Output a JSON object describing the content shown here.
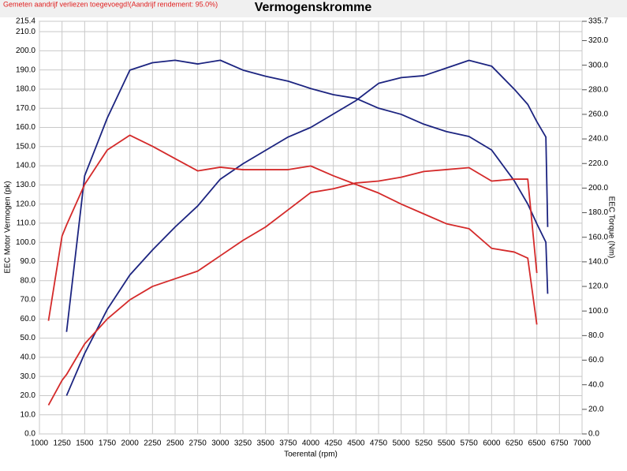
{
  "note": "Gemeten aandrijf verliezen toegevoegd!(Aandrijf rendement: 95.0%)",
  "chart_data": {
    "type": "line",
    "title": "Vermogenskromme",
    "xlabel": "Toerental (rpm)",
    "ylabel": "EEC Motor Vermogen (pk)",
    "y2label": "EEC Torque (Nm)",
    "grid": true,
    "x": [
      1100,
      1250,
      1300,
      1500,
      1750,
      2000,
      2250,
      2500,
      2750,
      3000,
      3250,
      3500,
      3750,
      4000,
      4250,
      4500,
      4750,
      5000,
      5250,
      5500,
      5750,
      6000,
      6250,
      6400,
      6500,
      6600,
      6620
    ],
    "xlim": [
      1000,
      7000
    ],
    "xticks": [
      1000,
      1250,
      1500,
      1750,
      2000,
      2250,
      2500,
      2750,
      3000,
      3250,
      3500,
      3750,
      4000,
      4250,
      4500,
      4750,
      5000,
      5250,
      5500,
      5750,
      6000,
      6250,
      6500,
      6750,
      7000
    ],
    "ylim": [
      0,
      215.4
    ],
    "yticks": [
      {
        "value": 0,
        "label": "0.0"
      },
      {
        "value": 10,
        "label": "10.0"
      },
      {
        "value": 20,
        "label": "20.0"
      },
      {
        "value": 30,
        "label": "30.0"
      },
      {
        "value": 40,
        "label": "40.0"
      },
      {
        "value": 50,
        "label": "50.0"
      },
      {
        "value": 60,
        "label": "60.0"
      },
      {
        "value": 70,
        "label": "70.0"
      },
      {
        "value": 80,
        "label": "80.0"
      },
      {
        "value": 90,
        "label": "90.0"
      },
      {
        "value": 100,
        "label": "100.0"
      },
      {
        "value": 110,
        "label": "110.0"
      },
      {
        "value": 120,
        "label": "120.0"
      },
      {
        "value": 130,
        "label": "130.0"
      },
      {
        "value": 140,
        "label": "140.0"
      },
      {
        "value": 150,
        "label": "150.0"
      },
      {
        "value": 160,
        "label": "160.0"
      },
      {
        "value": 170,
        "label": "170.0"
      },
      {
        "value": 180,
        "label": "180.0"
      },
      {
        "value": 190,
        "label": "190.0"
      },
      {
        "value": 200,
        "label": "200.0"
      },
      {
        "value": 210,
        "label": "210.0"
      },
      {
        "value": 215.4,
        "label": "215.4"
      }
    ],
    "y2lim": [
      0,
      335.7
    ],
    "y2ticks": [
      {
        "value": 0,
        "label": "0.0"
      },
      {
        "value": 20,
        "label": "20.0"
      },
      {
        "value": 40,
        "label": "40.0"
      },
      {
        "value": 60,
        "label": "60.0"
      },
      {
        "value": 80,
        "label": "80.0"
      },
      {
        "value": 100,
        "label": "100.0"
      },
      {
        "value": 120,
        "label": "120.0"
      },
      {
        "value": 140,
        "label": "140.0"
      },
      {
        "value": 160,
        "label": "160.0"
      },
      {
        "value": 180,
        "label": "180.0"
      },
      {
        "value": 200,
        "label": "200.0"
      },
      {
        "value": 220,
        "label": "220.0"
      },
      {
        "value": 240,
        "label": "240.0"
      },
      {
        "value": 260,
        "label": "260.0"
      },
      {
        "value": 280,
        "label": "280.0"
      },
      {
        "value": 300,
        "label": "300.0"
      },
      {
        "value": 320,
        "label": "320.0"
      },
      {
        "value": 335.7,
        "label": "335.7"
      }
    ],
    "series": [
      {
        "color": "#1c2480",
        "values": [
          null,
          null,
          20,
          42,
          65,
          83,
          96,
          108,
          119,
          133,
          141,
          148,
          155,
          160,
          167,
          174,
          183,
          186,
          187,
          191,
          195,
          192,
          180,
          172,
          163,
          155,
          108
        ]
      },
      {
        "color": "#1c2480",
        "axis": "y2",
        "values": [
          null,
          null,
          83,
          210,
          257,
          296,
          302,
          304,
          301,
          304,
          296,
          291,
          287,
          281,
          276,
          273,
          265,
          260,
          252,
          246,
          242,
          231,
          206,
          187,
          171,
          156,
          114
        ]
      },
      {
        "color": "#d42a2a",
        "values": [
          15,
          28,
          31,
          47,
          60,
          70,
          77,
          81,
          85,
          93,
          101,
          108,
          117,
          126,
          128,
          131,
          132,
          134,
          137,
          138,
          139,
          132,
          133,
          133,
          84,
          null,
          null
        ]
      },
      {
        "color": "#d42a2a",
        "axis": "y2",
        "values": [
          92,
          161,
          170,
          203,
          231,
          243,
          234,
          224,
          214,
          217,
          215,
          215,
          215,
          218,
          210,
          203,
          196,
          187,
          179,
          171,
          167,
          151,
          148,
          143,
          89,
          null,
          null
        ]
      }
    ]
  }
}
